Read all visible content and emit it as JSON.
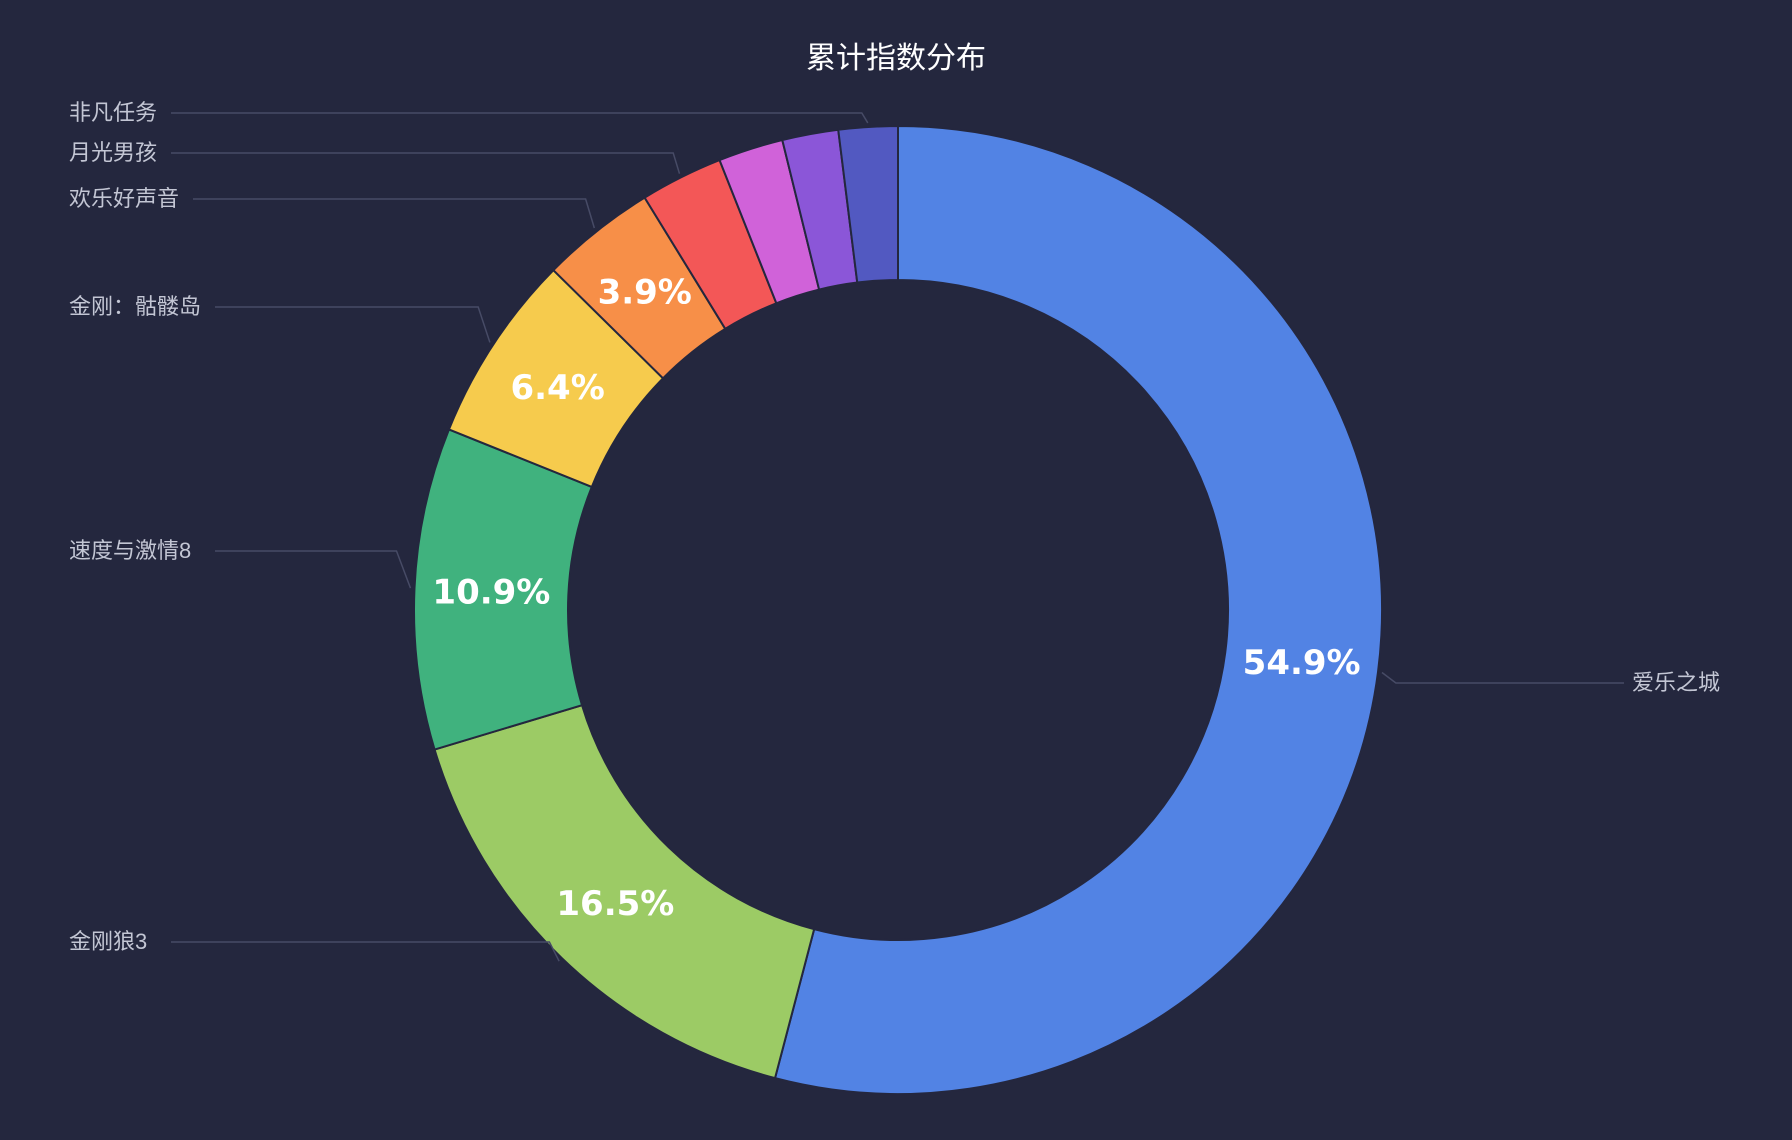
{
  "chart_data": {
    "type": "pie",
    "variant": "donut",
    "title": "累计指数分布",
    "start_angle": "12 o'clock",
    "direction": "clockwise",
    "slices": [
      {
        "name": "爱乐之城",
        "value": 54.9,
        "label": "54.9%",
        "color": "#5283e4",
        "show_label": true
      },
      {
        "name": "金刚狼3",
        "value": 16.5,
        "label": "16.5%",
        "color": "#9ccb65",
        "show_label": true
      },
      {
        "name": "速度与激情8",
        "value": 10.9,
        "label": "10.9%",
        "color": "#40b27e",
        "show_label": true
      },
      {
        "name": "金刚：骷髅岛",
        "value": 6.4,
        "label": "6.4%",
        "color": "#f6cb4d",
        "show_label": true
      },
      {
        "name": "欢乐好声音",
        "value": 3.9,
        "label": "3.9%",
        "color": "#f78f48",
        "show_label": true
      },
      {
        "name": "",
        "value": 2.8,
        "label": "",
        "color": "#f35757",
        "show_label": false
      },
      {
        "name": "",
        "value": 2.2,
        "label": "",
        "color": "#d062d9",
        "show_label": false
      },
      {
        "name": "",
        "value": 1.9,
        "label": "",
        "color": "#8b56d8",
        "show_label": false
      },
      {
        "name": "",
        "value": 2.0,
        "label": "",
        "color": "#5259c1",
        "show_label": false
      }
    ],
    "legend_labels": [
      "非凡任务",
      "月光男孩",
      "欢乐好声音",
      "金刚：骷髅岛",
      "速度与激情8",
      "金刚狼3",
      "爱乐之城"
    ]
  }
}
